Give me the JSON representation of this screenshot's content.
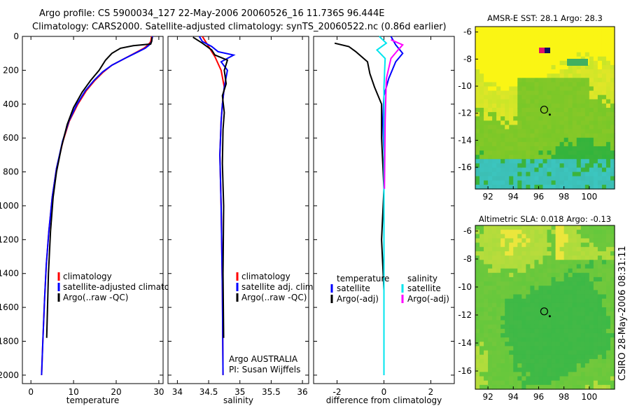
{
  "title": {
    "line1": "Argo profile: CS 5900034_127 22-May-2006 20060526_16 11.736S 96.444E",
    "line2": "Climatology: CARS2000. Satellite-adjusted climatology: synTS_20060522.nc (0.86d earlier)"
  },
  "stamp": "CSIRO 28-May-2006 08:31:11",
  "colors": {
    "climatology": "#ff0000",
    "satellite": "#0000ff",
    "argo": "#000000",
    "sal_satellite": "#00e5ee",
    "sal_argo": "#ff00ff"
  },
  "chart_data": [
    {
      "type": "line",
      "id": "temperature",
      "xlabel": "temperature",
      "ylabel": "",
      "xlim": [
        -2,
        31
      ],
      "ylim": [
        2050,
        0
      ],
      "xticks": [
        0,
        10,
        20,
        30
      ],
      "yticks": [
        0,
        200,
        400,
        600,
        800,
        1000,
        1200,
        1400,
        1600,
        1800,
        2000
      ],
      "series": [
        {
          "name": "climatology",
          "color": "#ff0000",
          "x": [
            28.3,
            28.1,
            27.5,
            26.5,
            25,
            22,
            19,
            17,
            15,
            13,
            11,
            9,
            7.5,
            6,
            5,
            4.2,
            3.6,
            3.2,
            2.8,
            2.5
          ],
          "y": [
            0,
            30,
            50,
            70,
            90,
            130,
            170,
            210,
            260,
            320,
            400,
            500,
            620,
            780,
            950,
            1150,
            1350,
            1550,
            1800,
            2000
          ]
        },
        {
          "name": "satellite-adjusted climatology",
          "color": "#0000ff",
          "x": [
            28.5,
            28.3,
            27.8,
            26.8,
            25.2,
            22,
            19,
            16.8,
            14.8,
            12.8,
            10.8,
            8.9,
            7.4,
            6,
            5,
            4.2,
            3.6,
            3.2,
            2.8,
            2.5
          ],
          "y": [
            0,
            30,
            50,
            70,
            90,
            130,
            170,
            210,
            260,
            320,
            400,
            500,
            620,
            780,
            950,
            1150,
            1350,
            1550,
            1800,
            2000
          ]
        },
        {
          "name": "Argo(..raw -QC)",
          "color": "#000000",
          "x": [
            28.4,
            28.3,
            28.1,
            24,
            21,
            19,
            17.5,
            16,
            14,
            12,
            10,
            8.5,
            7.2,
            6,
            5.2,
            4.6,
            4.1,
            3.7
          ],
          "y": [
            5,
            30,
            45,
            55,
            70,
            100,
            140,
            200,
            260,
            330,
            420,
            520,
            650,
            800,
            950,
            1150,
            1400,
            1780
          ]
        }
      ],
      "legend": {
        "items": [
          "climatology",
          "satellite-adjusted climatology",
          "Argo(..raw -QC)"
        ]
      }
    },
    {
      "type": "line",
      "id": "salinity",
      "xlabel": "salinity",
      "xlim": [
        33.85,
        36.1
      ],
      "ylim": [
        2050,
        0
      ],
      "xticks": [
        34,
        34.5,
        35,
        35.5,
        36
      ],
      "series": [
        {
          "name": "climatology",
          "color": "#ff0000",
          "x": [
            34.4,
            34.45,
            34.5,
            34.55,
            34.6,
            34.7,
            34.75,
            34.72,
            34.7,
            34.68,
            34.7,
            34.72,
            34.73
          ],
          "y": [
            0,
            30,
            60,
            90,
            120,
            200,
            300,
            400,
            500,
            700,
            1000,
            1500,
            2000
          ]
        },
        {
          "name": "satellite adj. clim.",
          "color": "#0000ff",
          "x": [
            34.35,
            34.4,
            34.55,
            34.65,
            34.9,
            34.7,
            34.8,
            34.75,
            34.72,
            34.7,
            34.68,
            34.7,
            34.72,
            34.73
          ],
          "y": [
            0,
            30,
            60,
            90,
            110,
            150,
            200,
            300,
            400,
            500,
            700,
            1000,
            1500,
            2000
          ]
        },
        {
          "name": "Argo(..raw -QC)",
          "color": "#000000",
          "x": [
            34.25,
            34.4,
            34.55,
            34.6,
            34.8,
            34.75,
            34.78,
            34.72,
            34.75,
            34.73,
            34.72,
            34.74,
            34.73,
            34.74
          ],
          "y": [
            5,
            40,
            80,
            110,
            140,
            200,
            280,
            350,
            450,
            550,
            750,
            1000,
            1400,
            1780
          ]
        }
      ],
      "legend": {
        "items": [
          "climatology",
          "satellite adj. clim.",
          "Argo(..raw -QC)"
        ]
      },
      "annotation": [
        "Argo AUSTRALIA",
        "PI: Susan Wijffels"
      ]
    },
    {
      "type": "line",
      "id": "difference",
      "xlabel": "difference from climatology",
      "xlim": [
        -3,
        3
      ],
      "ylim": [
        2050,
        0
      ],
      "xticks": [
        -2,
        0,
        2
      ],
      "series": [
        {
          "name": "temperature satellite",
          "color": "#0000ff",
          "x": [
            0.3,
            0.5,
            0.8,
            0.5,
            0.2,
            0,
            -0.05,
            0,
            0,
            0,
            0,
            0
          ],
          "y": [
            0,
            50,
            100,
            150,
            250,
            350,
            500,
            700,
            1000,
            1400,
            1700,
            2000
          ]
        },
        {
          "name": "temperature Argo(-adj)",
          "color": "#000000",
          "x": [
            -2.1,
            -1.5,
            -1.2,
            -0.7,
            -0.6,
            -0.4,
            -0.1,
            -0.1,
            0,
            -0.1,
            0,
            0
          ],
          "y": [
            40,
            60,
            90,
            150,
            220,
            300,
            400,
            600,
            900,
            1200,
            1500,
            1780
          ]
        },
        {
          "name": "salinity satellite",
          "color": "#00e5ee",
          "x": [
            -0.2,
            0.1,
            -0.3,
            0.05,
            0,
            0,
            0,
            0
          ],
          "y": [
            0,
            40,
            80,
            130,
            300,
            700,
            1400,
            2000
          ]
        },
        {
          "name": "salinity Argo(-adj)",
          "color": "#ff00ff",
          "x": [
            0.3,
            0.8,
            0.6,
            0.3,
            0.1,
            0.05,
            0.02
          ],
          "y": [
            20,
            50,
            80,
            130,
            250,
            500,
            900
          ]
        }
      ],
      "legend": {
        "headers": [
          "temperature",
          "salinity"
        ],
        "items_t": [
          "satellite",
          "Argo(-adj)"
        ],
        "items_s": [
          "satellite",
          "Argo(-adj)"
        ]
      }
    },
    {
      "type": "heatmap",
      "id": "sst",
      "title": "AMSR-E SST: 28.1 Argo: 28.3",
      "xlim": [
        91,
        102
      ],
      "ylim": [
        -17.6,
        -5.6
      ],
      "xticks": [
        92,
        94,
        96,
        98,
        100
      ],
      "yticks": [
        -6,
        -8,
        -10,
        -12,
        -14,
        -16
      ],
      "marker": {
        "lon": 96.44,
        "lat": -11.74
      }
    },
    {
      "type": "heatmap",
      "id": "sla",
      "title": "Altimetric SLA: 0.018  Argo: -0.13",
      "xlim": [
        91,
        102
      ],
      "ylim": [
        -17.3,
        -5.6
      ],
      "xticks": [
        92,
        94,
        96,
        98,
        100
      ],
      "yticks": [
        -6,
        -8,
        -10,
        -12,
        -14,
        -16
      ],
      "marker": {
        "lon": 96.44,
        "lat": -11.74
      }
    }
  ]
}
